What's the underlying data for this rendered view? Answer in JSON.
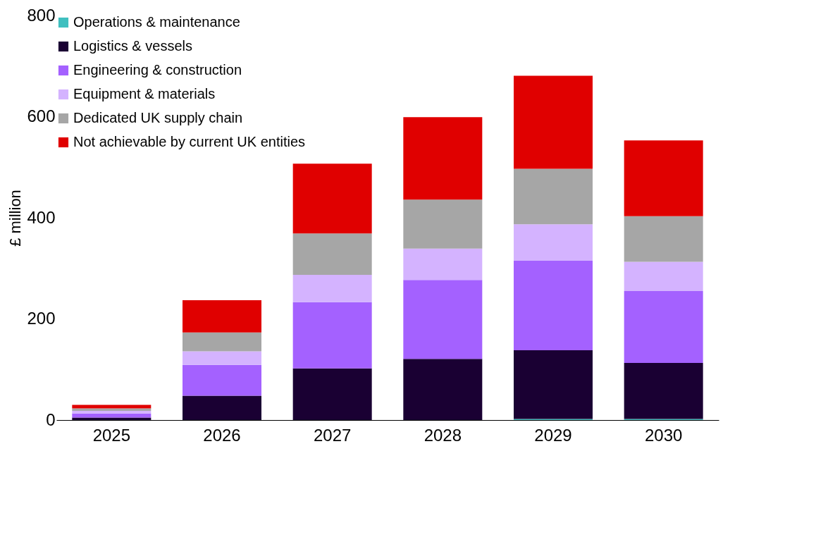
{
  "chart_data": {
    "type": "bar",
    "stacked": true,
    "ylabel": "£ million",
    "categories": [
      "2025",
      "2026",
      "2027",
      "2028",
      "2029",
      "2030"
    ],
    "series": [
      {
        "name": "Operations & maintenance",
        "color": "#3fbfbf",
        "values": [
          0,
          0,
          0,
          0,
          2,
          2
        ]
      },
      {
        "name": "Logistics & vessels",
        "color": "#1a0033",
        "values": [
          5,
          48,
          102,
          121,
          136,
          111
        ]
      },
      {
        "name": "Engineering & construction",
        "color": "#a461ff",
        "values": [
          8,
          61,
          131,
          156,
          177,
          142
        ]
      },
      {
        "name": "Equipment & materials",
        "color": "#d4b3ff",
        "values": [
          5,
          27,
          54,
          62,
          72,
          58
        ]
      },
      {
        "name": "Dedicated UK supply chain",
        "color": "#a6a6a6",
        "values": [
          5,
          37,
          82,
          97,
          110,
          90
        ]
      },
      {
        "name": "Not achievable by current UK entities",
        "color": "#e00000",
        "values": [
          7,
          64,
          138,
          163,
          184,
          150
        ]
      }
    ],
    "ylim": [
      0,
      800
    ],
    "yticks": [
      0,
      200,
      400,
      600,
      800
    ],
    "grid": false,
    "legend": "top left"
  }
}
